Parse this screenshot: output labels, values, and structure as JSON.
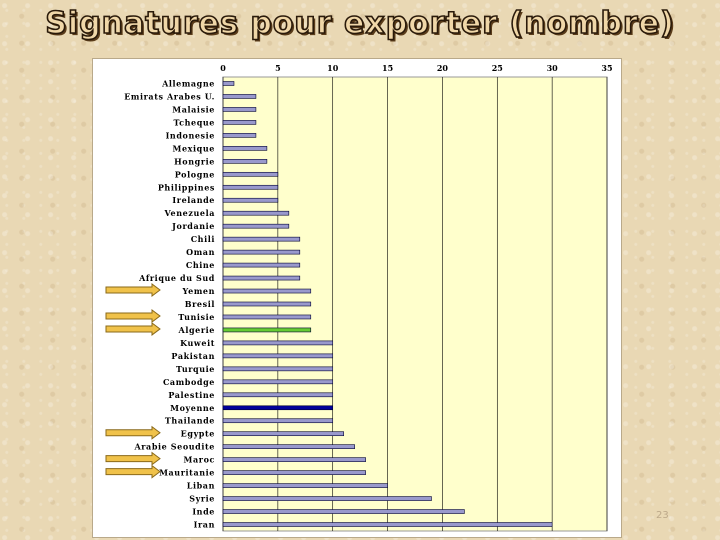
{
  "slide": {
    "title": "Signatures pour exporter (nombre)",
    "number": "23"
  },
  "colors": {
    "plot_background": "#ffffcc",
    "bar_default": "#9999cc",
    "bar_algerie": "#66cc33",
    "bar_moyenne": "#000099",
    "arrow_fill": "#f0c24a",
    "arrow_stroke": "#8a6a1a"
  },
  "chart_data": {
    "type": "bar",
    "orientation": "horizontal",
    "title": "",
    "xlabel": "",
    "ylabel": "",
    "xlim": [
      0,
      35
    ],
    "x_ticks": [
      0,
      5,
      10,
      15,
      20,
      25,
      30,
      35
    ],
    "x_axis_position": "top",
    "grid": true,
    "categories": [
      "Allemagne",
      "Emirats Arabes U.",
      "Malaisie",
      "Tcheque",
      "Indonesie",
      "Mexique",
      "Hongrie",
      "Pologne",
      "Philippines",
      "Irelande",
      "Venezuela",
      "Jordanie",
      "Chili",
      "Oman",
      "Chine",
      "Afrique du Sud",
      "Yemen",
      "Bresil",
      "Tunisie",
      "Algerie",
      "Kuweit",
      "Pakistan",
      "Turquie",
      "Cambodge",
      "Palestine",
      "Moyenne",
      "Thailande",
      "Egypte",
      "Arabie Seoudite",
      "Maroc",
      "Mauritanie",
      "Liban",
      "Syrie",
      "Inde",
      "Iran"
    ],
    "values": [
      1,
      3,
      3,
      3,
      3,
      4,
      4,
      5,
      5,
      5,
      6,
      6,
      7,
      7,
      7,
      7,
      8,
      8,
      8,
      8,
      10,
      10,
      10,
      10,
      10,
      10,
      10,
      11,
      12,
      13,
      13,
      15,
      19,
      22,
      30
    ],
    "highlight": {
      "Algerie": "green",
      "Moyenne": "navy"
    },
    "arrows": [
      "Yemen",
      "Tunisie",
      "Algerie",
      "Egypte",
      "Maroc",
      "Mauritanie"
    ]
  }
}
